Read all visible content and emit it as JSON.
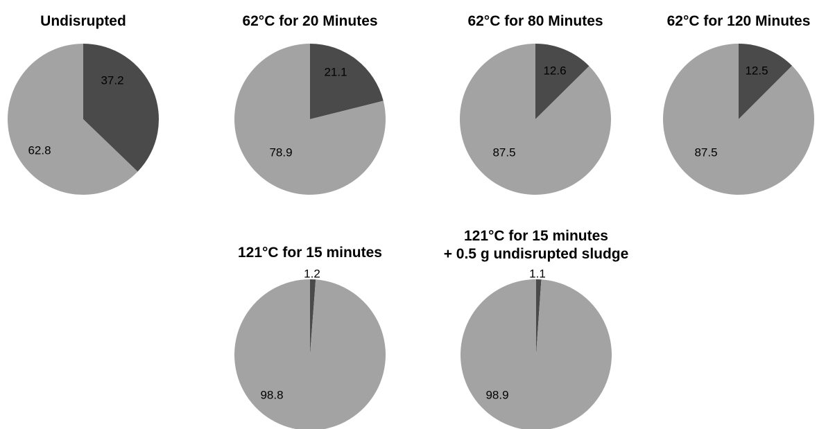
{
  "colors": {
    "dark": "#4a4a4a",
    "light": "#a3a3a3",
    "background": "#ffffff"
  },
  "chart_data": [
    {
      "type": "pie",
      "title": [
        "Undisrupted"
      ],
      "values": [
        37.2,
        62.8
      ],
      "labels": [
        "37.2",
        "62.8"
      ],
      "colors": [
        "#4a4a4a",
        "#a3a3a3"
      ]
    },
    {
      "type": "pie",
      "title": [
        "62°C for 20 Minutes"
      ],
      "values": [
        21.1,
        78.9
      ],
      "labels": [
        "21.1",
        "78.9"
      ],
      "colors": [
        "#4a4a4a",
        "#a3a3a3"
      ]
    },
    {
      "type": "pie",
      "title": [
        "62°C for 80 Minutes"
      ],
      "values": [
        12.6,
        87.5
      ],
      "labels": [
        "12.6",
        "87.5"
      ],
      "colors": [
        "#4a4a4a",
        "#a3a3a3"
      ]
    },
    {
      "type": "pie",
      "title": [
        "62°C for 120 Minutes"
      ],
      "values": [
        12.5,
        87.5
      ],
      "labels": [
        "12.5",
        "87.5"
      ],
      "colors": [
        "#4a4a4a",
        "#a3a3a3"
      ]
    },
    {
      "type": "pie",
      "title": [
        "121°C for 15 minutes"
      ],
      "values": [
        1.2,
        98.8
      ],
      "labels": [
        "1.2",
        "98.8"
      ],
      "colors": [
        "#4a4a4a",
        "#a3a3a3"
      ]
    },
    {
      "type": "pie",
      "title": [
        "121°C for 15 minutes",
        "+ 0.5 g undisrupted sludge"
      ],
      "values": [
        1.1,
        98.9
      ],
      "labels": [
        "1.1",
        "98.9"
      ],
      "colors": [
        "#4a4a4a",
        "#a3a3a3"
      ]
    }
  ]
}
